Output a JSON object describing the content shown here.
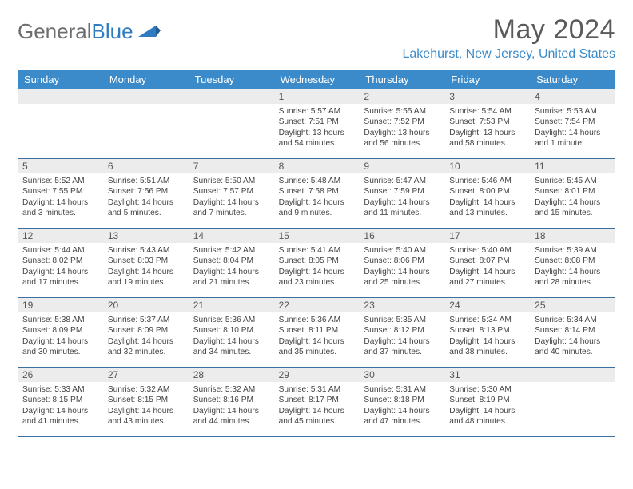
{
  "logo": {
    "text1": "General",
    "text2": "Blue"
  },
  "title": "May 2024",
  "location": "Lakehurst, New Jersey, United States",
  "weekdays": [
    "Sunday",
    "Monday",
    "Tuesday",
    "Wednesday",
    "Thursday",
    "Friday",
    "Saturday"
  ],
  "colors": {
    "header_bar": "#3b8bca",
    "header_text": "#ffffff",
    "daynum_bg": "#ececec",
    "week_border": "#3b6fa0",
    "accent": "#3b8bca"
  },
  "weeks": [
    [
      {
        "n": "",
        "sr": "",
        "ss": "",
        "dl": ""
      },
      {
        "n": "",
        "sr": "",
        "ss": "",
        "dl": ""
      },
      {
        "n": "",
        "sr": "",
        "ss": "",
        "dl": ""
      },
      {
        "n": "1",
        "sr": "Sunrise: 5:57 AM",
        "ss": "Sunset: 7:51 PM",
        "dl": "Daylight: 13 hours and 54 minutes."
      },
      {
        "n": "2",
        "sr": "Sunrise: 5:55 AM",
        "ss": "Sunset: 7:52 PM",
        "dl": "Daylight: 13 hours and 56 minutes."
      },
      {
        "n": "3",
        "sr": "Sunrise: 5:54 AM",
        "ss": "Sunset: 7:53 PM",
        "dl": "Daylight: 13 hours and 58 minutes."
      },
      {
        "n": "4",
        "sr": "Sunrise: 5:53 AM",
        "ss": "Sunset: 7:54 PM",
        "dl": "Daylight: 14 hours and 1 minute."
      }
    ],
    [
      {
        "n": "5",
        "sr": "Sunrise: 5:52 AM",
        "ss": "Sunset: 7:55 PM",
        "dl": "Daylight: 14 hours and 3 minutes."
      },
      {
        "n": "6",
        "sr": "Sunrise: 5:51 AM",
        "ss": "Sunset: 7:56 PM",
        "dl": "Daylight: 14 hours and 5 minutes."
      },
      {
        "n": "7",
        "sr": "Sunrise: 5:50 AM",
        "ss": "Sunset: 7:57 PM",
        "dl": "Daylight: 14 hours and 7 minutes."
      },
      {
        "n": "8",
        "sr": "Sunrise: 5:48 AM",
        "ss": "Sunset: 7:58 PM",
        "dl": "Daylight: 14 hours and 9 minutes."
      },
      {
        "n": "9",
        "sr": "Sunrise: 5:47 AM",
        "ss": "Sunset: 7:59 PM",
        "dl": "Daylight: 14 hours and 11 minutes."
      },
      {
        "n": "10",
        "sr": "Sunrise: 5:46 AM",
        "ss": "Sunset: 8:00 PM",
        "dl": "Daylight: 14 hours and 13 minutes."
      },
      {
        "n": "11",
        "sr": "Sunrise: 5:45 AM",
        "ss": "Sunset: 8:01 PM",
        "dl": "Daylight: 14 hours and 15 minutes."
      }
    ],
    [
      {
        "n": "12",
        "sr": "Sunrise: 5:44 AM",
        "ss": "Sunset: 8:02 PM",
        "dl": "Daylight: 14 hours and 17 minutes."
      },
      {
        "n": "13",
        "sr": "Sunrise: 5:43 AM",
        "ss": "Sunset: 8:03 PM",
        "dl": "Daylight: 14 hours and 19 minutes."
      },
      {
        "n": "14",
        "sr": "Sunrise: 5:42 AM",
        "ss": "Sunset: 8:04 PM",
        "dl": "Daylight: 14 hours and 21 minutes."
      },
      {
        "n": "15",
        "sr": "Sunrise: 5:41 AM",
        "ss": "Sunset: 8:05 PM",
        "dl": "Daylight: 14 hours and 23 minutes."
      },
      {
        "n": "16",
        "sr": "Sunrise: 5:40 AM",
        "ss": "Sunset: 8:06 PM",
        "dl": "Daylight: 14 hours and 25 minutes."
      },
      {
        "n": "17",
        "sr": "Sunrise: 5:40 AM",
        "ss": "Sunset: 8:07 PM",
        "dl": "Daylight: 14 hours and 27 minutes."
      },
      {
        "n": "18",
        "sr": "Sunrise: 5:39 AM",
        "ss": "Sunset: 8:08 PM",
        "dl": "Daylight: 14 hours and 28 minutes."
      }
    ],
    [
      {
        "n": "19",
        "sr": "Sunrise: 5:38 AM",
        "ss": "Sunset: 8:09 PM",
        "dl": "Daylight: 14 hours and 30 minutes."
      },
      {
        "n": "20",
        "sr": "Sunrise: 5:37 AM",
        "ss": "Sunset: 8:09 PM",
        "dl": "Daylight: 14 hours and 32 minutes."
      },
      {
        "n": "21",
        "sr": "Sunrise: 5:36 AM",
        "ss": "Sunset: 8:10 PM",
        "dl": "Daylight: 14 hours and 34 minutes."
      },
      {
        "n": "22",
        "sr": "Sunrise: 5:36 AM",
        "ss": "Sunset: 8:11 PM",
        "dl": "Daylight: 14 hours and 35 minutes."
      },
      {
        "n": "23",
        "sr": "Sunrise: 5:35 AM",
        "ss": "Sunset: 8:12 PM",
        "dl": "Daylight: 14 hours and 37 minutes."
      },
      {
        "n": "24",
        "sr": "Sunrise: 5:34 AM",
        "ss": "Sunset: 8:13 PM",
        "dl": "Daylight: 14 hours and 38 minutes."
      },
      {
        "n": "25",
        "sr": "Sunrise: 5:34 AM",
        "ss": "Sunset: 8:14 PM",
        "dl": "Daylight: 14 hours and 40 minutes."
      }
    ],
    [
      {
        "n": "26",
        "sr": "Sunrise: 5:33 AM",
        "ss": "Sunset: 8:15 PM",
        "dl": "Daylight: 14 hours and 41 minutes."
      },
      {
        "n": "27",
        "sr": "Sunrise: 5:32 AM",
        "ss": "Sunset: 8:15 PM",
        "dl": "Daylight: 14 hours and 43 minutes."
      },
      {
        "n": "28",
        "sr": "Sunrise: 5:32 AM",
        "ss": "Sunset: 8:16 PM",
        "dl": "Daylight: 14 hours and 44 minutes."
      },
      {
        "n": "29",
        "sr": "Sunrise: 5:31 AM",
        "ss": "Sunset: 8:17 PM",
        "dl": "Daylight: 14 hours and 45 minutes."
      },
      {
        "n": "30",
        "sr": "Sunrise: 5:31 AM",
        "ss": "Sunset: 8:18 PM",
        "dl": "Daylight: 14 hours and 47 minutes."
      },
      {
        "n": "31",
        "sr": "Sunrise: 5:30 AM",
        "ss": "Sunset: 8:19 PM",
        "dl": "Daylight: 14 hours and 48 minutes."
      },
      {
        "n": "",
        "sr": "",
        "ss": "",
        "dl": ""
      }
    ]
  ]
}
